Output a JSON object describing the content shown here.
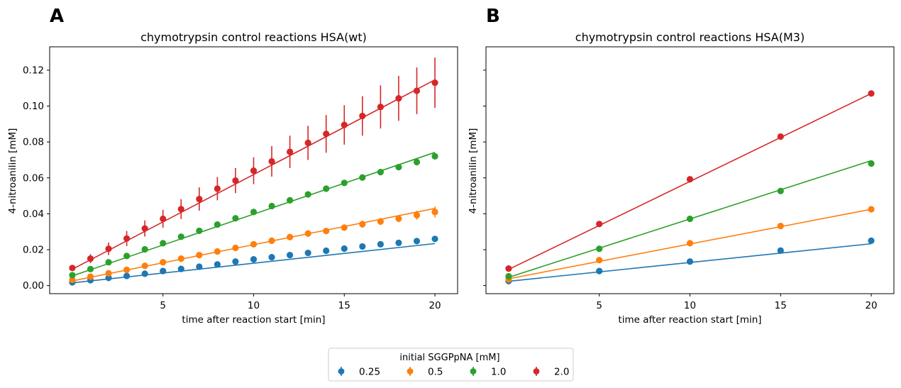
{
  "colors": {
    "c0": "#1f77b4",
    "c1": "#ff7f0e",
    "c2": "#2ca02c",
    "c3": "#d62728"
  },
  "legend": {
    "title": "initial SGGPpNA  [mM]",
    "placement": "lower-center",
    "entries": [
      "0.25",
      "0.5",
      "1.0",
      "2.0"
    ]
  },
  "chart_data": [
    {
      "type": "scatter",
      "panel_label": "A",
      "title": "chymotrypsin control reactions HSA(wt)",
      "xlabel": "time after reaction start [min]",
      "ylabel": "4-nitroanilin [mM]",
      "xlim": [
        -1.25,
        21.25
      ],
      "ylim": [
        -0.0045,
        0.133
      ],
      "xticks": [
        5,
        10,
        15,
        20
      ],
      "xtick_labels": [
        "5",
        "10",
        "15",
        "20"
      ],
      "yticks": [
        0.0,
        0.02,
        0.04,
        0.06,
        0.08,
        0.1,
        0.12
      ],
      "ytick_labels": [
        "0.00",
        "0.02",
        "0.04",
        "0.06",
        "0.08",
        "0.10",
        "0.12"
      ],
      "grid": false,
      "x": [
        0,
        1,
        2,
        3,
        4,
        5,
        6,
        7,
        8,
        9,
        10,
        11,
        12,
        13,
        14,
        15,
        16,
        17,
        18,
        19,
        20
      ],
      "series": [
        {
          "name": "0.25",
          "values": [
            0.0018,
            0.003,
            0.0043,
            0.0054,
            0.0066,
            0.0081,
            0.0093,
            0.0105,
            0.0118,
            0.0134,
            0.0146,
            0.0158,
            0.017,
            0.0182,
            0.0194,
            0.0206,
            0.0218,
            0.023,
            0.0238,
            0.0248,
            0.026
          ],
          "errors": [
            0,
            0,
            0,
            0,
            0,
            0,
            0,
            0,
            0,
            0,
            0,
            0,
            0,
            0,
            0,
            0,
            0,
            0,
            0,
            0,
            0
          ],
          "fit": [
            0.0015,
            0.0234
          ]
        },
        {
          "name": "0.5",
          "values": [
            0.0032,
            0.005,
            0.0068,
            0.0088,
            0.011,
            0.013,
            0.015,
            0.017,
            0.019,
            0.021,
            0.023,
            0.025,
            0.027,
            0.029,
            0.0304,
            0.0323,
            0.0342,
            0.0357,
            0.0373,
            0.0392,
            0.041
          ],
          "errors": [
            0,
            0,
            0,
            0,
            0,
            0,
            0,
            0,
            0,
            0,
            0,
            0,
            0,
            0,
            0,
            0,
            0.002,
            0.002,
            0.002,
            0.0025,
            0.003
          ],
          "fit": [
            0.0026,
            0.043
          ]
        },
        {
          "name": "1.0",
          "values": [
            0.0058,
            0.0092,
            0.013,
            0.0165,
            0.0202,
            0.0236,
            0.0272,
            0.0305,
            0.034,
            0.0375,
            0.041,
            0.0443,
            0.0475,
            0.0508,
            0.054,
            0.0572,
            0.0602,
            0.0632,
            0.066,
            0.0688,
            0.072
          ],
          "errors": [
            0,
            0,
            0,
            0,
            0,
            0,
            0,
            0,
            0,
            0,
            0,
            0,
            0,
            0,
            0,
            0,
            0,
            0,
            0,
            0,
            0
          ],
          "fit": [
            0.0054,
            0.0742
          ]
        },
        {
          "name": "2.0",
          "values": [
            0.0098,
            0.015,
            0.0205,
            0.0262,
            0.0318,
            0.0372,
            0.0426,
            0.0482,
            0.054,
            0.0585,
            0.064,
            0.0692,
            0.0745,
            0.0795,
            0.0845,
            0.0895,
            0.0945,
            0.0995,
            0.1043,
            0.1085,
            0.113
          ],
          "errors": [
            0.0012,
            0.0025,
            0.0035,
            0.0042,
            0.0045,
            0.005,
            0.0055,
            0.0065,
            0.0065,
            0.007,
            0.0075,
            0.0085,
            0.009,
            0.0095,
            0.0105,
            0.011,
            0.011,
            0.012,
            0.0125,
            0.013,
            0.014
          ],
          "fit": [
            0.0091,
            0.1146
          ]
        }
      ]
    },
    {
      "type": "scatter",
      "panel_label": "B",
      "title": "chymotrypsin control reactions HSA(M3)",
      "xlabel": "time after reaction start [min]",
      "ylabel": "4-nitroanilin [mM]",
      "xlim": [
        -1.25,
        21.25
      ],
      "ylim": [
        -0.0045,
        0.133
      ],
      "xticks": [
        5,
        10,
        15,
        20
      ],
      "xtick_labels": [
        "5",
        "10",
        "15",
        "20"
      ],
      "yticks": [
        0.0,
        0.02,
        0.04,
        0.06,
        0.08,
        0.1,
        0.12
      ],
      "ytick_labels": [],
      "grid": false,
      "x": [
        0,
        5,
        10,
        15,
        20
      ],
      "series": [
        {
          "name": "0.25",
          "values": [
            0.0025,
            0.0081,
            0.0134,
            0.0195,
            0.025
          ],
          "errors": [
            0,
            0,
            0,
            0,
            0
          ],
          "fit": [
            0.0024,
            0.0233
          ]
        },
        {
          "name": "0.5",
          "values": [
            0.0034,
            0.0142,
            0.0236,
            0.0332,
            0.0425
          ],
          "errors": [
            0,
            0,
            0,
            0,
            0
          ],
          "fit": [
            0.0038,
            0.0425
          ]
        },
        {
          "name": "1.0",
          "values": [
            0.0052,
            0.0205,
            0.0372,
            0.0527,
            0.068
          ],
          "errors": [
            0,
            0,
            0,
            0,
            0
          ],
          "fit": [
            0.0046,
            0.0696
          ]
        },
        {
          "name": "2.0",
          "values": [
            0.0095,
            0.0343,
            0.0592,
            0.083,
            0.107
          ],
          "errors": [
            0,
            0,
            0,
            0,
            0
          ],
          "fit": [
            0.009,
            0.107
          ]
        }
      ]
    }
  ]
}
